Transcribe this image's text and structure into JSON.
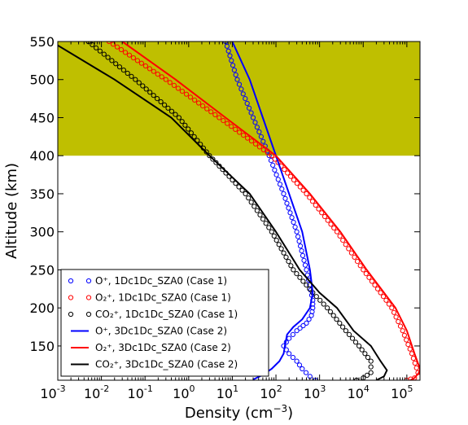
{
  "chart_data": {
    "type": "line",
    "xlabel": "Density (cm",
    "xlabel_sup": "−3",
    "xlabel_end": ")",
    "ylabel": "Altitude (km)",
    "xscale": "log",
    "xlim": [
      0.001,
      200000
    ],
    "ylim": [
      105,
      550
    ],
    "x_ticks": [
      {
        "value": 0.001,
        "base": "10",
        "exp": "-3"
      },
      {
        "value": 0.01,
        "base": "10",
        "exp": "-2"
      },
      {
        "value": 0.1,
        "base": "10",
        "exp": "-1"
      },
      {
        "value": 1,
        "base": "10",
        "exp": "0"
      },
      {
        "value": 10,
        "base": "10",
        "exp": "1"
      },
      {
        "value": 100,
        "base": "10",
        "exp": "2"
      },
      {
        "value": 1000,
        "base": "10",
        "exp": "3"
      },
      {
        "value": 10000,
        "base": "10",
        "exp": "4"
      },
      {
        "value": 100000,
        "base": "10",
        "exp": "5"
      }
    ],
    "y_ticks": [
      "150",
      "200",
      "250",
      "300",
      "350",
      "400",
      "450",
      "500",
      "550"
    ],
    "shaded_region": {
      "y_from": 400,
      "y_to": 550,
      "color": "#bfbf00"
    },
    "legend_position": "lower-left",
    "series": [
      {
        "name": "O⁺, 1Dc1Dc_SZA0 (Case 1)",
        "color": "#0000ff",
        "style": "markers",
        "points": [
          [
            7,
            550
          ],
          [
            13,
            500
          ],
          [
            30,
            450
          ],
          [
            70,
            400
          ],
          [
            150,
            350
          ],
          [
            300,
            300
          ],
          [
            500,
            250
          ],
          [
            700,
            210
          ],
          [
            700,
            200
          ],
          [
            650,
            190
          ],
          [
            500,
            180
          ],
          [
            300,
            170
          ],
          [
            200,
            160
          ],
          [
            150,
            150
          ],
          [
            200,
            140
          ],
          [
            300,
            130
          ],
          [
            400,
            120
          ],
          [
            600,
            110
          ],
          [
            800,
            105
          ]
        ]
      },
      {
        "name": "O₂⁺, 1Dc1Dc_SZA0 (Case 1)",
        "color": "#ff0000",
        "style": "markers",
        "points": [
          [
            0.015,
            550
          ],
          [
            0.3,
            500
          ],
          [
            5,
            450
          ],
          [
            80,
            400
          ],
          [
            500,
            350
          ],
          [
            2500,
            300
          ],
          [
            10000,
            250
          ],
          [
            25000,
            220
          ],
          [
            45000,
            200
          ],
          [
            80000,
            170
          ],
          [
            130000,
            140
          ],
          [
            180000,
            115
          ],
          [
            150000,
            108
          ],
          [
            100000,
            105
          ]
        ]
      },
      {
        "name": "CO₂⁺, 1Dc1Dc_SZA0 (Case 1)",
        "color": "#000000",
        "style": "markers",
        "points": [
          [
            0.005,
            550
          ],
          [
            0.06,
            500
          ],
          [
            0.6,
            450
          ],
          [
            3,
            400
          ],
          [
            20,
            350
          ],
          [
            80,
            300
          ],
          [
            250,
            250
          ],
          [
            700,
            220
          ],
          [
            1500,
            200
          ],
          [
            4000,
            170
          ],
          [
            8000,
            150
          ],
          [
            15000,
            130
          ],
          [
            15000,
            115
          ],
          [
            10000,
            108
          ],
          [
            7000,
            105
          ]
        ]
      },
      {
        "name": "O⁺, 3Dc1Dc_SZA0 (Case 2)",
        "color": "#0000ff",
        "style": "line",
        "points": [
          [
            10,
            550
          ],
          [
            25,
            500
          ],
          [
            50,
            450
          ],
          [
            100,
            400
          ],
          [
            200,
            350
          ],
          [
            400,
            300
          ],
          [
            600,
            250
          ],
          [
            700,
            220
          ],
          [
            600,
            200
          ],
          [
            400,
            185
          ],
          [
            250,
            175
          ],
          [
            180,
            165
          ],
          [
            160,
            150
          ],
          [
            150,
            140
          ],
          [
            120,
            130
          ],
          [
            80,
            120
          ],
          [
            50,
            112
          ],
          [
            30,
            106
          ]
        ]
      },
      {
        "name": "O₂⁺, 3Dc1Dc_SZA0 (Case 2)",
        "color": "#ff0000",
        "style": "line",
        "points": [
          [
            0.03,
            550
          ],
          [
            0.5,
            500
          ],
          [
            7,
            450
          ],
          [
            100,
            400
          ],
          [
            600,
            350
          ],
          [
            3000,
            300
          ],
          [
            12000,
            250
          ],
          [
            30000,
            220
          ],
          [
            55000,
            200
          ],
          [
            100000,
            170
          ],
          [
            150000,
            140
          ],
          [
            200000,
            120
          ],
          [
            190000,
            115
          ],
          [
            150000,
            108
          ],
          [
            120000,
            105
          ]
        ]
      },
      {
        "name": "CO₂⁺, 3Dc1Dc_SZA0 (Case 2)",
        "color": "#000000",
        "style": "line",
        "points": [
          [
            0.001,
            545
          ],
          [
            0.02,
            500
          ],
          [
            0.4,
            450
          ],
          [
            3,
            400
          ],
          [
            25,
            350
          ],
          [
            100,
            300
          ],
          [
            350,
            250
          ],
          [
            1000,
            220
          ],
          [
            2500,
            200
          ],
          [
            6000,
            170
          ],
          [
            15000,
            150
          ],
          [
            25000,
            130
          ],
          [
            35000,
            118
          ],
          [
            30000,
            110
          ],
          [
            20000,
            105
          ]
        ]
      }
    ]
  }
}
